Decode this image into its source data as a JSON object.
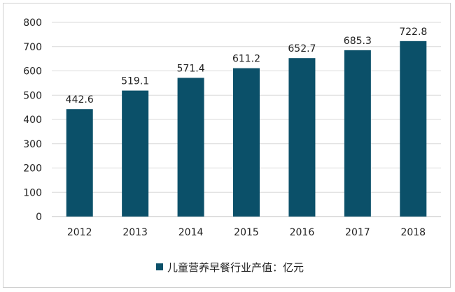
{
  "chart_data": {
    "type": "bar",
    "categories": [
      "2012",
      "2013",
      "2014",
      "2015",
      "2016",
      "2017",
      "2018"
    ],
    "series": [
      {
        "name": "儿童营养早餐行业产值：亿元",
        "values": [
          442.6,
          519.1,
          571.4,
          611.2,
          652.7,
          685.3,
          722.8
        ]
      }
    ],
    "data_labels": [
      "442.6",
      "519.1",
      "571.4",
      "611.2",
      "652.7",
      "685.3",
      "722.8"
    ],
    "y_ticks": [
      "0",
      "100",
      "200",
      "300",
      "400",
      "500",
      "600",
      "700",
      "800"
    ],
    "ylim": [
      0,
      800
    ],
    "title": "",
    "xlabel": "",
    "ylabel": "",
    "grid": true,
    "legend_position": "bottom",
    "bar_color": "#0b5069",
    "grid_color": "#d9d9d9"
  }
}
